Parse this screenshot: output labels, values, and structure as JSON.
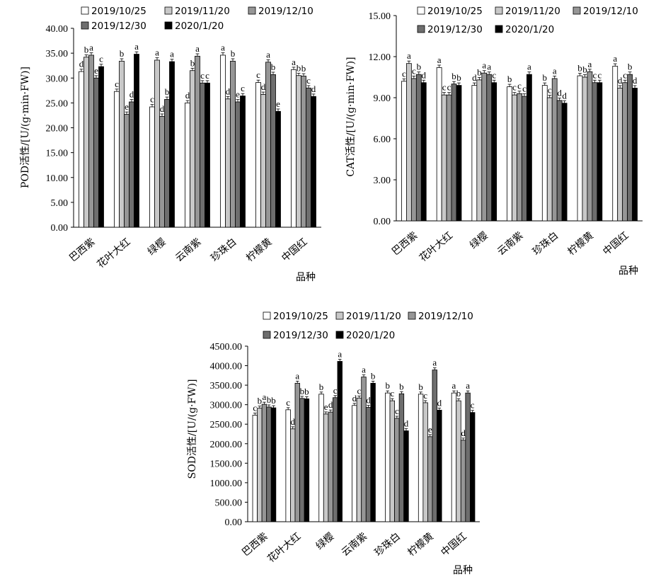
{
  "chart_data": [
    {
      "type": "bar",
      "ylabel": "POD活性/[U/(g·min·FW)]",
      "xlabel": "品种",
      "ylim": [
        0,
        40
      ],
      "yticks": [
        "0.00",
        "5.00",
        "10.00",
        "15.00",
        "20.00",
        "25.00",
        "30.00",
        "35.00",
        "40.00"
      ],
      "categories": [
        "巴西紫",
        "花叶大红",
        "绿樱",
        "云南紫",
        "珍珠白",
        "柠檬黄",
        "中国红"
      ],
      "legend": [
        "2019/10/25",
        "2019/11/20",
        "2019/12/10",
        "2019/12/30",
        "2020/1/20"
      ],
      "series": [
        {
          "name": "2019/10/25",
          "values": [
            31.3,
            27.3,
            24.2,
            25.0,
            34.6,
            29.1,
            31.7
          ],
          "labels": [
            "d",
            "c",
            "c",
            "d",
            "a",
            "c",
            "a"
          ]
        },
        {
          "name": "2019/11/20",
          "values": [
            34.2,
            33.4,
            33.6,
            31.5,
            25.8,
            26.7,
            30.5
          ],
          "labels": [
            "b",
            "b",
            "a",
            "b",
            "d",
            "d",
            "b"
          ]
        },
        {
          "name": "2019/12/10",
          "values": [
            34.6,
            22.7,
            22.3,
            34.4,
            33.4,
            33.2,
            30.4
          ],
          "labels": [
            "a",
            "e",
            "d",
            "a",
            "b",
            "a",
            "b"
          ]
        },
        {
          "name": "2019/12/30",
          "values": [
            30.0,
            25.2,
            25.7,
            29.0,
            25.2,
            30.7,
            28.0
          ],
          "labels": [
            "e",
            "d",
            "b",
            "c",
            "e",
            "b",
            "c"
          ]
        },
        {
          "name": "2020/1/20",
          "values": [
            32.3,
            34.8,
            33.3,
            29.0,
            26.4,
            23.3,
            26.3
          ],
          "labels": [
            "c",
            "a",
            "a",
            "c",
            "c",
            "e",
            "d"
          ]
        }
      ]
    },
    {
      "type": "bar",
      "ylabel": "CAT活性/[U/(g·min·FW)]",
      "xlabel": "品种",
      "ylim": [
        0,
        15
      ],
      "yticks": [
        "0.00",
        "3.00",
        "6.00",
        "9.00",
        "12.00",
        "15.00"
      ],
      "categories": [
        "巴西紫",
        "花叶大红",
        "绿樱",
        "云南紫",
        "珍珠白",
        "柠檬黄",
        "中国红"
      ],
      "legend": [
        "2019/10/25",
        "2019/11/20",
        "2019/12/10",
        "2019/12/30",
        "2020/1/20"
      ],
      "series": [
        {
          "name": "2019/10/25",
          "values": [
            10.2,
            11.2,
            9.9,
            9.8,
            9.9,
            10.6,
            11.3
          ],
          "labels": [
            "c",
            "a",
            "d",
            "b",
            "b",
            "b",
            "a"
          ]
        },
        {
          "name": "2019/11/20",
          "values": [
            11.5,
            9.2,
            10.3,
            9.2,
            9.0,
            10.5,
            9.7
          ],
          "labels": [
            "a",
            "c",
            "b",
            "c",
            "c",
            "b",
            "d"
          ]
        },
        {
          "name": "2019/12/10",
          "values": [
            10.4,
            9.2,
            10.8,
            9.3,
            10.4,
            10.9,
            10.1
          ],
          "labels": [
            "c",
            "c",
            "a",
            "c",
            "a",
            "a",
            "c"
          ]
        },
        {
          "name": "2019/12/30",
          "values": [
            10.7,
            10.0,
            10.7,
            9.1,
            8.8,
            10.1,
            10.7
          ],
          "labels": [
            "b",
            "b",
            "a",
            "c",
            "d",
            "c",
            "b"
          ]
        },
        {
          "name": "2020/1/20",
          "values": [
            10.1,
            9.9,
            10.1,
            10.7,
            8.6,
            10.1,
            9.7
          ],
          "labels": [
            "d",
            "b",
            "c",
            "a",
            "d",
            "c",
            "d"
          ]
        }
      ]
    },
    {
      "type": "bar",
      "ylabel": "SOD活性/[U/(g·FW)]",
      "xlabel": "品种",
      "ylim": [
        0,
        4500
      ],
      "yticks": [
        "0.00",
        "500.00",
        "1000.00",
        "1500.00",
        "2000.00",
        "2500.00",
        "3000.00",
        "3500.00",
        "4000.00",
        "4500.00"
      ],
      "categories": [
        "巴西紫",
        "花叶大红",
        "绿樱",
        "云南紫",
        "珍珠白",
        "柠檬黄",
        "中国红"
      ],
      "legend": [
        "2019/10/25",
        "2019/11/20",
        "2019/12/10",
        "2019/12/30",
        "2020/1/20"
      ],
      "series": [
        {
          "name": "2019/10/25",
          "values": [
            2730,
            2870,
            3270,
            2980,
            3300,
            3270,
            3300
          ],
          "labels": [
            "c",
            "c",
            "b",
            "d",
            "b",
            "b",
            "a"
          ]
        },
        {
          "name": "2019/11/20",
          "values": [
            2910,
            2380,
            2760,
            3170,
            3100,
            3050,
            3100
          ],
          "labels": [
            "b",
            "d",
            "e",
            "c",
            "c",
            "c",
            "b"
          ]
        },
        {
          "name": "2019/12/10",
          "values": [
            3010,
            3550,
            2810,
            3710,
            2650,
            2180,
            2090
          ],
          "labels": [
            "a",
            "a",
            "d",
            "a",
            "c",
            "e",
            "d"
          ]
        },
        {
          "name": "2019/12/30",
          "values": [
            2940,
            3160,
            3180,
            2930,
            3280,
            3890,
            3300
          ],
          "labels": [
            "b",
            "b",
            "c",
            "d",
            "b",
            "a",
            "a"
          ]
        },
        {
          "name": "2020/1/20",
          "values": [
            2920,
            3150,
            4110,
            3550,
            2330,
            2860,
            2800
          ],
          "labels": [
            "b",
            "b",
            "a",
            "b",
            "d",
            "d",
            "c"
          ]
        }
      ]
    }
  ]
}
